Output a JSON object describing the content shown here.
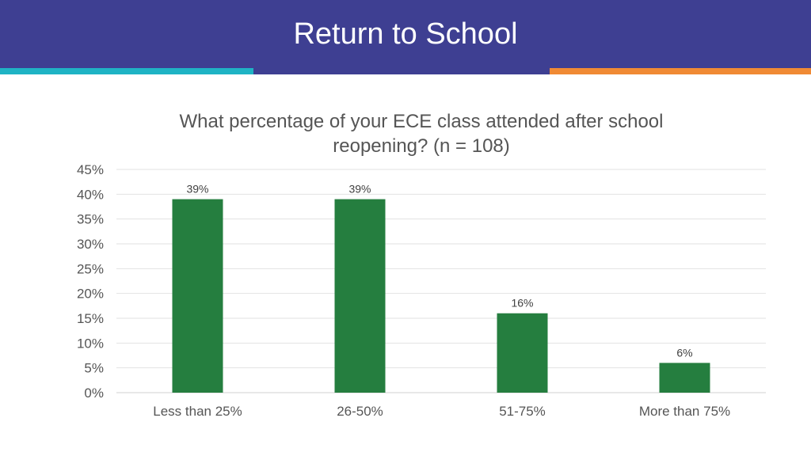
{
  "slide": {
    "title": "Return to School",
    "accent_left_color": "#1fb3c4",
    "accent_right_color": "#f08a34",
    "header_color": "#3e3f92"
  },
  "chart_data": {
    "type": "bar",
    "title": "What percentage of your ECE class attended after school reopening? (n = 108)",
    "categories": [
      "Less than 25%",
      "26-50%",
      "51-75%",
      "More than 75%"
    ],
    "values": [
      39,
      39,
      16,
      6
    ],
    "data_labels": [
      "39%",
      "39%",
      "16%",
      "6%"
    ],
    "ylim": [
      0,
      45
    ],
    "yticks": [
      0,
      5,
      10,
      15,
      20,
      25,
      30,
      35,
      40,
      45
    ],
    "ytick_labels": [
      "0%",
      "5%",
      "10%",
      "15%",
      "20%",
      "25%",
      "30%",
      "35%",
      "40%",
      "45%"
    ],
    "xlabel": "",
    "ylabel": "",
    "grid": true,
    "bar_color": "#257e3f"
  }
}
